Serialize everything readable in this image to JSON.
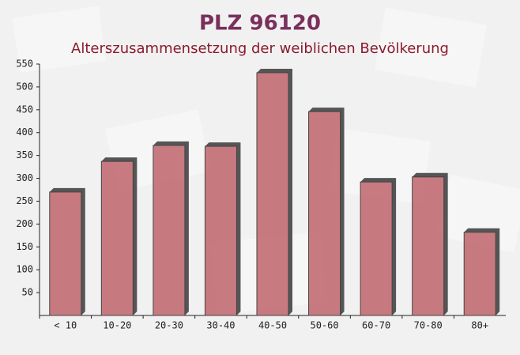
{
  "chart_data": {
    "type": "bar",
    "title": "PLZ 96120",
    "subtitle": "Alterszusammensetzung der weiblichen Bevölkerung",
    "categories": [
      "< 10",
      "10-20",
      "20-30",
      "30-40",
      "40-50",
      "50-60",
      "60-70",
      "70-80",
      "80+"
    ],
    "values": [
      270,
      337,
      372,
      370,
      531,
      446,
      292,
      303,
      182
    ],
    "color": "#c0646c",
    "ylim": [
      0,
      550
    ],
    "yticks": [
      50,
      100,
      150,
      200,
      250,
      300,
      350,
      400,
      450,
      500,
      550
    ],
    "grid": false
  }
}
